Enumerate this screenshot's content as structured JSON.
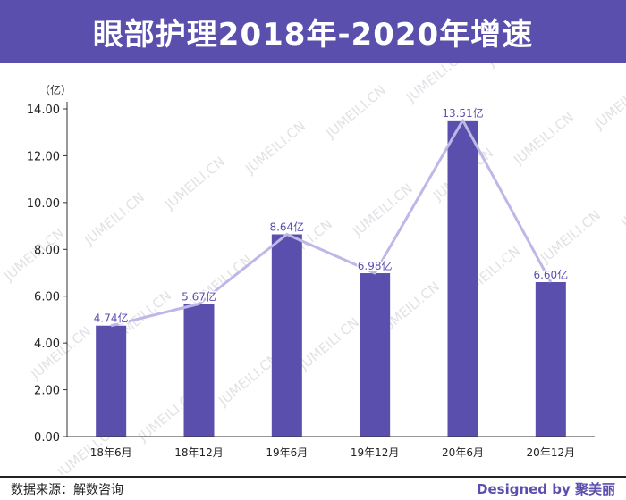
{
  "header": {
    "title": "眼部护理2018年-2020年增速"
  },
  "footer": {
    "source": "数据来源：解数咨询",
    "credit": "Designed by 聚美丽"
  },
  "watermark": {
    "text": "JUMEILI.CN"
  },
  "colors": {
    "accent": "#5b4fae",
    "line": "#bdb8e6",
    "text": "#333333"
  },
  "chart_data": {
    "type": "bar",
    "title": "眼部护理2018年-2020年增速",
    "ylabel": "（亿）",
    "categories": [
      "18年6月",
      "18年12月",
      "19年6月",
      "19年12月",
      "20年6月",
      "20年12月"
    ],
    "values": [
      4.74,
      5.67,
      8.64,
      6.98,
      13.51,
      6.6
    ],
    "value_labels": [
      "4.74亿",
      "5.67亿",
      "8.64亿",
      "6.98亿",
      "13.51亿",
      "6.60亿"
    ],
    "ylim": [
      0,
      14
    ],
    "yticks": [
      "0.00",
      "2.00",
      "4.00",
      "6.00",
      "8.00",
      "10.00",
      "12.00",
      "14.00"
    ],
    "overlay_line": true,
    "grid": false,
    "legend": "none"
  }
}
